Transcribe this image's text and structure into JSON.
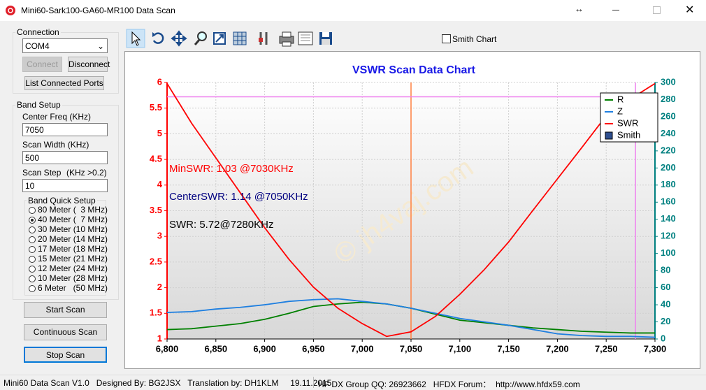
{
  "window": {
    "title": "Mini60-Sark100-GA60-MR100 Data Scan"
  },
  "connection": {
    "title": "Connection",
    "port": "COM4",
    "connect": "Connect",
    "disconnect": "Disconnect",
    "list_ports": "List Connected Ports"
  },
  "band_setup": {
    "title": "Band Setup",
    "center_label": "Center Freq  (KHz)",
    "center_value": "7050",
    "width_label": "Scan Width   (KHz)",
    "width_value": "500",
    "step_label": "Scan Step",
    "step_hint": "(KHz >0.2)",
    "step_value": "10"
  },
  "band_quick_setup": {
    "title": "Band Quick Setup",
    "options": [
      "80 Meter (  3 MHz)",
      "40 Meter (  7 MHz)",
      "30 Meter (10 MHz)",
      "20 Meter (14 MHz)",
      "17 Meter (18 MHz)",
      "15 Meter (21 MHz)",
      "12 Meter (24 MHz)",
      "10 Meter (28 MHz)",
      "6 Meter   (50 MHz)"
    ],
    "selected": 1
  },
  "buttons": {
    "start": "Start Scan",
    "continuous": "Continuous Scan",
    "stop": "Stop Scan"
  },
  "toolbar": {
    "smith_chart": "Smith Chart"
  },
  "status_bar": {
    "left": "Mini60 Data Scan V1.0   Designed By: BG2JSX   Translation by: DH1KLM     19.11.2015",
    "right": "HF DX Group QQ: 26923662   HFDX Forum：  http://www.hfdx59.com"
  },
  "chart_data": {
    "type": "line",
    "title": "VSWR Scan Data Chart",
    "x": [
      6800,
      6825,
      6850,
      6875,
      6900,
      6925,
      6950,
      6975,
      7000,
      7025,
      7050,
      7075,
      7100,
      7125,
      7150,
      7175,
      7200,
      7225,
      7250,
      7275,
      7300
    ],
    "series": [
      {
        "name": "R",
        "color": "#008000",
        "axis": "y2",
        "values": [
          11,
          12,
          15,
          18,
          23,
          30,
          38,
          41,
          43,
          41,
          36,
          29,
          22,
          19,
          16,
          13,
          11,
          9,
          8,
          7,
          7
        ]
      },
      {
        "name": "Z",
        "color": "#1e7fe0",
        "axis": "y2",
        "values": [
          31,
          32,
          35,
          37,
          40,
          44,
          46,
          47,
          44,
          41,
          36,
          30,
          24,
          20,
          16,
          11,
          6,
          4,
          3,
          3,
          2
        ]
      },
      {
        "name": "SWR",
        "color": "#ff0000",
        "values": [
          5.98,
          5.21,
          4.53,
          3.85,
          3.17,
          2.55,
          2.01,
          1.6,
          1.3,
          1.05,
          1.14,
          1.44,
          1.87,
          2.35,
          2.89,
          3.51,
          4.12,
          4.73,
          5.35,
          5.68,
          5.98
        ]
      }
    ],
    "legend_extra": "Smith",
    "xlim": [
      6800,
      7300
    ],
    "xticks": [
      {
        "value": 6800,
        "label": "6,800"
      },
      {
        "value": 6850,
        "label": "6,850"
      },
      {
        "value": 6900,
        "label": "6,900"
      },
      {
        "value": 6950,
        "label": "6,950"
      },
      {
        "value": 7000,
        "label": "7,000"
      },
      {
        "value": 7050,
        "label": "7,050"
      },
      {
        "value": 7100,
        "label": "7,100"
      },
      {
        "value": 7150,
        "label": "7,150"
      },
      {
        "value": 7200,
        "label": "7,200"
      },
      {
        "value": 7250,
        "label": "7,250"
      },
      {
        "value": 7300,
        "label": "7,300"
      }
    ],
    "ylim": [
      1,
      6
    ],
    "yticks": [
      1,
      1.5,
      2,
      2.5,
      3,
      3.5,
      4,
      4.5,
      5,
      5.5,
      6
    ],
    "ycolor": "#ff0000",
    "y2lim": [
      0,
      300
    ],
    "y2ticks": [
      0,
      20,
      40,
      60,
      80,
      100,
      120,
      140,
      160,
      180,
      200,
      220,
      240,
      260,
      280,
      300
    ],
    "y2color": "#008080",
    "grid": true,
    "legend": "upper right",
    "vlines": [
      {
        "x": 7050,
        "color": "#ff8040"
      },
      {
        "x": 7280,
        "color": "#ee82ee"
      }
    ],
    "hlines": [
      {
        "y": 5.72,
        "color": "#ee82ee"
      }
    ],
    "annotations": [
      {
        "text": "MinSWR: 1.03 @7030KHz",
        "color": "#ff0000"
      },
      {
        "text": "CenterSWR: 1.14 @7050KHz",
        "color": "#000080"
      },
      {
        "text": "SWR: 5.72@7280KHz",
        "color": "#000000"
      }
    ],
    "watermark": "© jh4vaj.com"
  }
}
